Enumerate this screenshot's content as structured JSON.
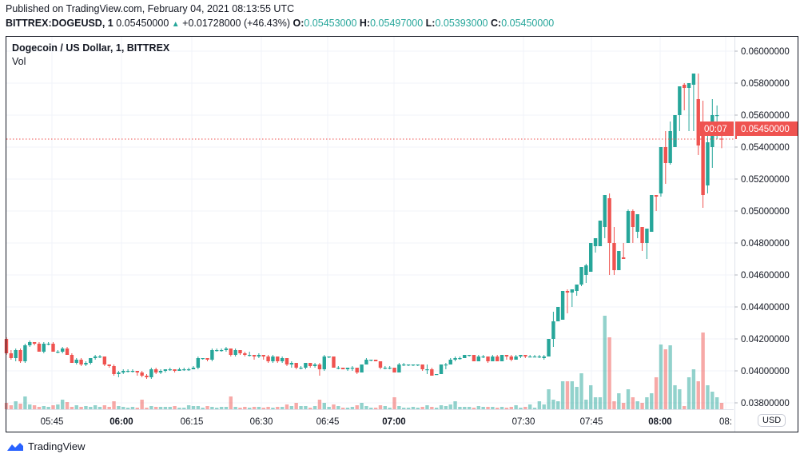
{
  "header": {
    "published": "Published on TradingView.com, February 04, 2021 08:13:55 UTC",
    "symbol": "BITTREX:DOGEUSD, 1",
    "last": "0.05450000",
    "change": "+0.01728000 (+46.43%)",
    "o_label": "O:",
    "o": "0.05453000",
    "h_label": "H:",
    "h": "0.05497000",
    "l_label": "L:",
    "l": "0.05393000",
    "c_label": "C:",
    "c": "0.05450000"
  },
  "legend": {
    "title": "Dogecoin / US Dollar, 1, BITTREX",
    "vol": "Vol"
  },
  "currency": "USD",
  "footer": {
    "brand": "TradingView"
  },
  "colors": {
    "up": "#26a69a",
    "down": "#ef5350"
  },
  "chart_data": {
    "type": "candlestick",
    "ylim": [
      0.0375,
      0.0605
    ],
    "grid": true,
    "y_ticks": [
      "0.06000000",
      "0.05800000",
      "0.05600000",
      "0.05400000",
      "0.05200000",
      "0.05000000",
      "0.04800000",
      "0.04600000",
      "0.04400000",
      "0.04200000",
      "0.04000000",
      "0.03800000"
    ],
    "x_ticks": [
      {
        "label": "05:45",
        "bold": false
      },
      {
        "label": "06:00",
        "bold": true
      },
      {
        "label": "06:15",
        "bold": false
      },
      {
        "label": "06:30",
        "bold": false
      },
      {
        "label": "06:45",
        "bold": false
      },
      {
        "label": "07:00",
        "bold": true
      },
      {
        "label": "07:30",
        "bold": false
      },
      {
        "label": "07:45",
        "bold": false
      },
      {
        "label": "08:00",
        "bold": true
      },
      {
        "label": "08:",
        "bold": false
      }
    ],
    "last_price": {
      "value": 0.0545,
      "label": "0.05450000",
      "countdown": "00:07"
    },
    "candle_fields": [
      "open",
      "high",
      "low",
      "close",
      "volume"
    ],
    "candles": [
      [
        0.042,
        0.0421,
        0.041,
        0.0411,
        8
      ],
      [
        0.0411,
        0.0413,
        0.0407,
        0.0408,
        5
      ],
      [
        0.0408,
        0.0414,
        0.0406,
        0.0413,
        10
      ],
      [
        0.0413,
        0.0414,
        0.0405,
        0.0406,
        7
      ],
      [
        0.0406,
        0.0417,
        0.0405,
        0.0416,
        16
      ],
      [
        0.0416,
        0.0419,
        0.0415,
        0.0418,
        6
      ],
      [
        0.0418,
        0.0418,
        0.0416,
        0.0417,
        5
      ],
      [
        0.0417,
        0.0418,
        0.0412,
        0.0412,
        3
      ],
      [
        0.0412,
        0.0418,
        0.0411,
        0.0417,
        4
      ],
      [
        0.0417,
        0.0418,
        0.0416,
        0.0417,
        3
      ],
      [
        0.0417,
        0.0418,
        0.0412,
        0.0412,
        5
      ],
      [
        0.0412,
        0.0413,
        0.0411,
        0.0412,
        6
      ],
      [
        0.0412,
        0.0415,
        0.0411,
        0.0414,
        12
      ],
      [
        0.0414,
        0.0415,
        0.041,
        0.041,
        9
      ],
      [
        0.041,
        0.0411,
        0.0405,
        0.0405,
        3
      ],
      [
        0.0405,
        0.0408,
        0.0404,
        0.0407,
        5
      ],
      [
        0.0407,
        0.0408,
        0.0403,
        0.0404,
        3
      ],
      [
        0.0404,
        0.0406,
        0.0403,
        0.0405,
        4
      ],
      [
        0.0405,
        0.0408,
        0.0404,
        0.0408,
        3
      ],
      [
        0.0408,
        0.041,
        0.0407,
        0.0409,
        5
      ],
      [
        0.0409,
        0.041,
        0.0408,
        0.0409,
        3
      ],
      [
        0.0409,
        0.0409,
        0.0403,
        0.0404,
        5
      ],
      [
        0.0404,
        0.0404,
        0.0402,
        0.0403,
        3
      ],
      [
        0.0403,
        0.0404,
        0.0397,
        0.0398,
        10
      ],
      [
        0.0398,
        0.04,
        0.0396,
        0.0399,
        4
      ],
      [
        0.0399,
        0.0401,
        0.0398,
        0.04,
        3
      ],
      [
        0.04,
        0.0401,
        0.0399,
        0.04,
        2
      ],
      [
        0.04,
        0.0401,
        0.0399,
        0.04,
        3
      ],
      [
        0.04,
        0.04,
        0.0397,
        0.0399,
        2
      ],
      [
        0.0399,
        0.04,
        0.0396,
        0.0397,
        12
      ],
      [
        0.0397,
        0.0398,
        0.0395,
        0.0396,
        2
      ],
      [
        0.0396,
        0.0402,
        0.0395,
        0.0401,
        4
      ],
      [
        0.0401,
        0.0402,
        0.0398,
        0.0399,
        3
      ],
      [
        0.0399,
        0.0401,
        0.0398,
        0.04,
        3
      ],
      [
        0.04,
        0.0401,
        0.0399,
        0.0401,
        3
      ],
      [
        0.0401,
        0.0402,
        0.04,
        0.0401,
        3
      ],
      [
        0.0401,
        0.0401,
        0.0399,
        0.04,
        4
      ],
      [
        0.04,
        0.0402,
        0.04,
        0.0401,
        2
      ],
      [
        0.0401,
        0.0402,
        0.04,
        0.0401,
        2
      ],
      [
        0.0401,
        0.0402,
        0.04,
        0.0401,
        5
      ],
      [
        0.0401,
        0.0403,
        0.0401,
        0.0402,
        4
      ],
      [
        0.0402,
        0.0409,
        0.0401,
        0.0408,
        4
      ],
      [
        0.0408,
        0.0408,
        0.0407,
        0.0408,
        2
      ],
      [
        0.0408,
        0.0408,
        0.0406,
        0.0407,
        4
      ],
      [
        0.0407,
        0.0414,
        0.0406,
        0.0413,
        3
      ],
      [
        0.0413,
        0.0414,
        0.0412,
        0.0413,
        2
      ],
      [
        0.0413,
        0.0414,
        0.0412,
        0.0413,
        3
      ],
      [
        0.0413,
        0.0415,
        0.0412,
        0.0414,
        3
      ],
      [
        0.0414,
        0.0414,
        0.0409,
        0.041,
        16
      ],
      [
        0.041,
        0.0414,
        0.0409,
        0.0413,
        3
      ],
      [
        0.0413,
        0.0413,
        0.041,
        0.0411,
        2
      ],
      [
        0.0411,
        0.0412,
        0.0409,
        0.041,
        3
      ],
      [
        0.041,
        0.0412,
        0.0409,
        0.041,
        2
      ],
      [
        0.041,
        0.041,
        0.0407,
        0.0409,
        3
      ],
      [
        0.0409,
        0.0411,
        0.0408,
        0.041,
        3
      ],
      [
        0.041,
        0.041,
        0.0407,
        0.0409,
        2
      ],
      [
        0.0409,
        0.041,
        0.0405,
        0.0406,
        3
      ],
      [
        0.0406,
        0.041,
        0.0405,
        0.0409,
        2
      ],
      [
        0.0409,
        0.0409,
        0.0405,
        0.0406,
        3
      ],
      [
        0.0406,
        0.0409,
        0.0405,
        0.0408,
        3
      ],
      [
        0.0408,
        0.0408,
        0.0403,
        0.0404,
        6
      ],
      [
        0.0404,
        0.0406,
        0.0402,
        0.0405,
        4
      ],
      [
        0.0405,
        0.0405,
        0.0401,
        0.0402,
        8
      ],
      [
        0.0402,
        0.0403,
        0.0401,
        0.0402,
        4
      ],
      [
        0.0402,
        0.0405,
        0.0401,
        0.0405,
        4
      ],
      [
        0.0405,
        0.0405,
        0.0402,
        0.0403,
        2
      ],
      [
        0.0403,
        0.0405,
        0.0402,
        0.0404,
        4
      ],
      [
        0.0404,
        0.0405,
        0.0397,
        0.0401,
        12
      ],
      [
        0.0401,
        0.041,
        0.04,
        0.0409,
        8
      ],
      [
        0.0409,
        0.0409,
        0.0408,
        0.0409,
        3
      ],
      [
        0.0409,
        0.0409,
        0.0402,
        0.0402,
        6
      ],
      [
        0.0402,
        0.0403,
        0.0401,
        0.0402,
        4
      ],
      [
        0.0402,
        0.0402,
        0.0401,
        0.0401,
        2
      ],
      [
        0.0401,
        0.0402,
        0.04,
        0.0402,
        2
      ],
      [
        0.0402,
        0.0403,
        0.04,
        0.0402,
        3
      ],
      [
        0.0402,
        0.0402,
        0.0398,
        0.0399,
        5
      ],
      [
        0.0399,
        0.0404,
        0.0399,
        0.0404,
        8
      ],
      [
        0.0404,
        0.0408,
        0.0404,
        0.0407,
        4
      ],
      [
        0.0407,
        0.0407,
        0.0406,
        0.0407,
        2
      ],
      [
        0.0407,
        0.0407,
        0.0406,
        0.0406,
        2
      ],
      [
        0.0406,
        0.0406,
        0.0401,
        0.0402,
        5
      ],
      [
        0.0402,
        0.0403,
        0.0401,
        0.0402,
        4
      ],
      [
        0.0402,
        0.0403,
        0.0401,
        0.0402,
        2
      ],
      [
        0.0402,
        0.0402,
        0.0399,
        0.0399,
        15
      ],
      [
        0.0399,
        0.0405,
        0.0399,
        0.0404,
        4
      ],
      [
        0.0404,
        0.0405,
        0.0403,
        0.0404,
        2
      ],
      [
        0.0404,
        0.0404,
        0.0403,
        0.0404,
        2
      ],
      [
        0.0404,
        0.0404,
        0.0403,
        0.0404,
        3
      ],
      [
        0.0404,
        0.0404,
        0.0403,
        0.0404,
        2
      ],
      [
        0.0404,
        0.0404,
        0.04,
        0.0401,
        3
      ],
      [
        0.0401,
        0.0404,
        0.0398,
        0.0401,
        5
      ],
      [
        0.0401,
        0.0402,
        0.0397,
        0.0397,
        3
      ],
      [
        0.0398,
        0.0398,
        0.0398,
        0.0398,
        2
      ],
      [
        0.0398,
        0.0404,
        0.0398,
        0.0404,
        5
      ],
      [
        0.0404,
        0.0405,
        0.0401,
        0.0404,
        4
      ],
      [
        0.0404,
        0.0408,
        0.0404,
        0.0407,
        6
      ],
      [
        0.0407,
        0.0409,
        0.0406,
        0.0408,
        10
      ],
      [
        0.0408,
        0.0409,
        0.0407,
        0.0408,
        3
      ],
      [
        0.0408,
        0.041,
        0.0408,
        0.041,
        3
      ],
      [
        0.041,
        0.041,
        0.0409,
        0.041,
        3
      ],
      [
        0.041,
        0.041,
        0.0406,
        0.0406,
        2
      ],
      [
        0.0406,
        0.041,
        0.0406,
        0.0409,
        4
      ],
      [
        0.0409,
        0.041,
        0.0408,
        0.0409,
        3
      ],
      [
        0.0409,
        0.0409,
        0.0405,
        0.0406,
        3
      ],
      [
        0.0406,
        0.041,
        0.0406,
        0.0409,
        3
      ],
      [
        0.0409,
        0.041,
        0.0406,
        0.0406,
        2
      ],
      [
        0.0406,
        0.041,
        0.0406,
        0.041,
        3
      ],
      [
        0.041,
        0.041,
        0.0407,
        0.0409,
        2
      ],
      [
        0.0409,
        0.041,
        0.0406,
        0.0407,
        3
      ],
      [
        0.0407,
        0.041,
        0.0407,
        0.0409,
        5
      ],
      [
        0.0409,
        0.041,
        0.0408,
        0.041,
        2
      ],
      [
        0.041,
        0.041,
        0.0408,
        0.0409,
        3
      ],
      [
        0.0409,
        0.041,
        0.0409,
        0.0409,
        6
      ],
      [
        0.0409,
        0.041,
        0.0409,
        0.0409,
        2
      ],
      [
        0.0409,
        0.041,
        0.0408,
        0.0409,
        10
      ],
      [
        0.0408,
        0.041,
        0.0407,
        0.0409,
        6
      ],
      [
        0.0409,
        0.042,
        0.0409,
        0.042,
        25
      ],
      [
        0.042,
        0.0437,
        0.0415,
        0.0431,
        12
      ],
      [
        0.0431,
        0.044,
        0.0431,
        0.044,
        10
      ],
      [
        0.0432,
        0.045,
        0.0432,
        0.045,
        35
      ],
      [
        0.045,
        0.0451,
        0.0436,
        0.0449,
        35
      ],
      [
        0.0449,
        0.0451,
        0.044,
        0.0451,
        35
      ],
      [
        0.045,
        0.0454,
        0.0447,
        0.0454,
        28
      ],
      [
        0.0454,
        0.0465,
        0.0453,
        0.0465,
        45
      ],
      [
        0.046,
        0.0467,
        0.0455,
        0.0466,
        12
      ],
      [
        0.0462,
        0.048,
        0.0462,
        0.048,
        30
      ],
      [
        0.0478,
        0.0483,
        0.0474,
        0.0483,
        15
      ],
      [
        0.0478,
        0.0494,
        0.0478,
        0.0494,
        15
      ],
      [
        0.049,
        0.051,
        0.0483,
        0.051,
        117
      ],
      [
        0.0508,
        0.0511,
        0.046,
        0.048,
        90
      ],
      [
        0.048,
        0.049,
        0.046,
        0.0463,
        10
      ],
      [
        0.0463,
        0.0475,
        0.0463,
        0.0475,
        20
      ],
      [
        0.0471,
        0.048,
        0.047,
        0.047,
        8
      ],
      [
        0.048,
        0.0501,
        0.048,
        0.05,
        25
      ],
      [
        0.05,
        0.0501,
        0.048,
        0.049,
        15
      ],
      [
        0.0487,
        0.0498,
        0.0483,
        0.0498,
        10
      ],
      [
        0.049,
        0.049,
        0.0475,
        0.048,
        8
      ],
      [
        0.048,
        0.0489,
        0.047,
        0.0489,
        15
      ],
      [
        0.0487,
        0.051,
        0.0487,
        0.051,
        20
      ],
      [
        0.051,
        0.051,
        0.05,
        0.0509,
        40
      ],
      [
        0.0511,
        0.054,
        0.0509,
        0.054,
        81
      ],
      [
        0.054,
        0.055,
        0.0517,
        0.053,
        75
      ],
      [
        0.053,
        0.0556,
        0.0529,
        0.055,
        80
      ],
      [
        0.054,
        0.056,
        0.054,
        0.056,
        30
      ],
      [
        0.056,
        0.0578,
        0.055,
        0.0578,
        25
      ],
      [
        0.0579,
        0.058,
        0.0563,
        0.0577,
        4
      ],
      [
        0.0577,
        0.058,
        0.055,
        0.058,
        40
      ],
      [
        0.0579,
        0.0586,
        0.055,
        0.0586,
        50
      ],
      [
        0.057,
        0.0586,
        0.0535,
        0.0541,
        35
      ],
      [
        0.0548,
        0.0569,
        0.0502,
        0.051,
        96
      ],
      [
        0.0516,
        0.055,
        0.0511,
        0.0543,
        30
      ],
      [
        0.054,
        0.057,
        0.0527,
        0.056,
        22
      ],
      [
        0.056,
        0.0566,
        0.0545,
        0.056,
        15
      ],
      [
        0.05453,
        0.05497,
        0.05393,
        0.0545,
        8
      ]
    ]
  }
}
